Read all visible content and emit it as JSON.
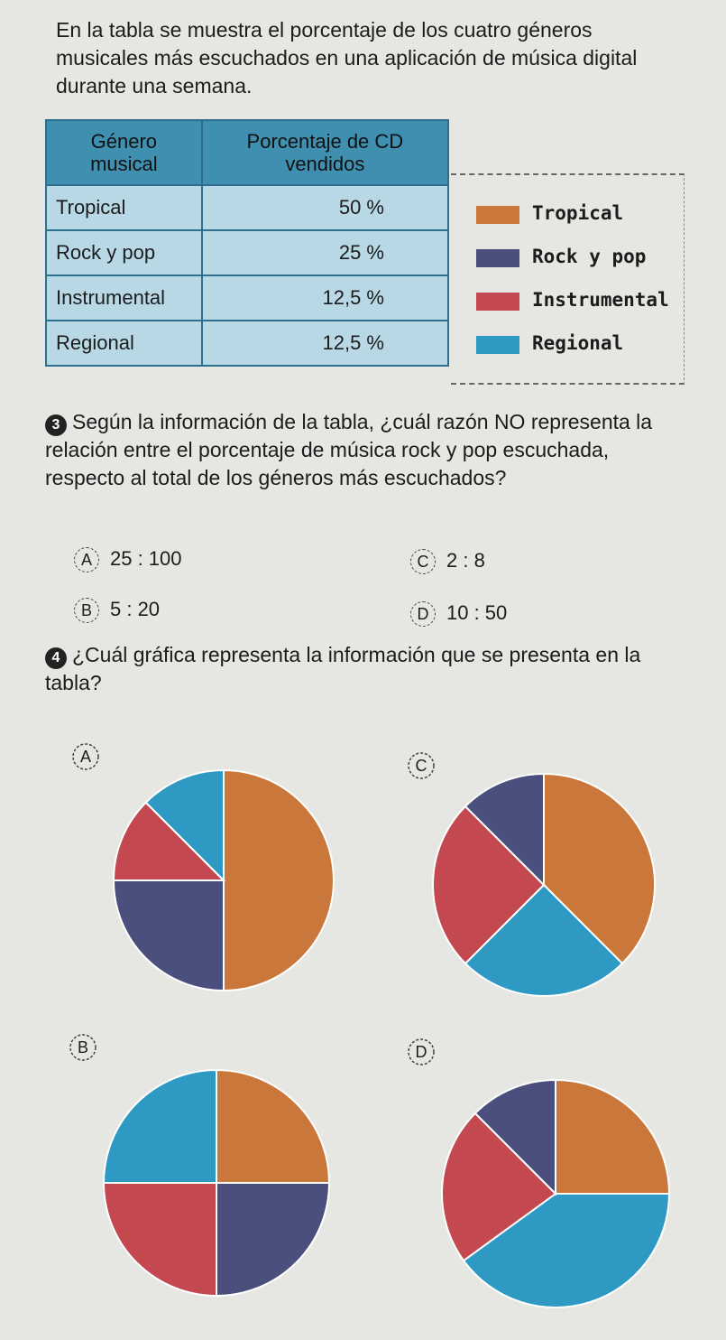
{
  "intro": "En la tabla se muestra el porcentaje de los cuatro géneros musicales más escuchados en una aplicación de música digital durante una semana.",
  "table": {
    "headers": [
      "Género musical",
      "Porcentaje de CD vendidos"
    ],
    "rows": [
      [
        "Tropical",
        "50 %"
      ],
      [
        "Rock y pop",
        "25 %"
      ],
      [
        "Instrumental",
        "12,5 %"
      ],
      [
        "Regional",
        "12,5 %"
      ]
    ]
  },
  "legend": [
    {
      "label": "Tropical",
      "color": "#c9773a"
    },
    {
      "label": "Rock y pop",
      "color": "#4a4f7e"
    },
    {
      "label": "Instrumental",
      "color": "#c4484f"
    },
    {
      "label": "Regional",
      "color": "#2e9ac4"
    }
  ],
  "question3": {
    "number": "3",
    "text": "Según la información de la tabla, ¿cuál razón NO representa la relación entre el porcentaje de música rock y pop escuchada, respecto al total de los géneros más escuchados?",
    "options": [
      {
        "letter": "A",
        "text": "25 : 100"
      },
      {
        "letter": "B",
        "text": "5 : 20"
      },
      {
        "letter": "C",
        "text": "2 : 8"
      },
      {
        "letter": "D",
        "text": "10 : 50"
      }
    ]
  },
  "question4": {
    "number": "4",
    "text": "¿Cuál gráfica representa la información que se presenta en la tabla?"
  },
  "chart_data": [
    {
      "type": "pie",
      "option": "A",
      "values": [
        50,
        25,
        12.5,
        12.5
      ],
      "colors": [
        "#c9773a",
        "#4a4f7e",
        "#c4484f",
        "#2e9ac4"
      ]
    },
    {
      "type": "pie",
      "option": "B",
      "values": [
        25,
        25,
        25,
        25
      ],
      "colors": [
        "#c9773a",
        "#4a4f7e",
        "#c4484f",
        "#2e9ac4"
      ]
    },
    {
      "type": "pie",
      "option": "C",
      "values": [
        37.5,
        25,
        25,
        12.5
      ],
      "colors": [
        "#c9773a",
        "#2e9ac4",
        "#c4484f",
        "#4a4f7e"
      ]
    },
    {
      "type": "pie",
      "option": "D",
      "values": [
        25,
        40,
        22.5,
        12.5
      ],
      "colors": [
        "#c9773a",
        "#2e9ac4",
        "#c4484f",
        "#4a4f7e"
      ]
    }
  ]
}
